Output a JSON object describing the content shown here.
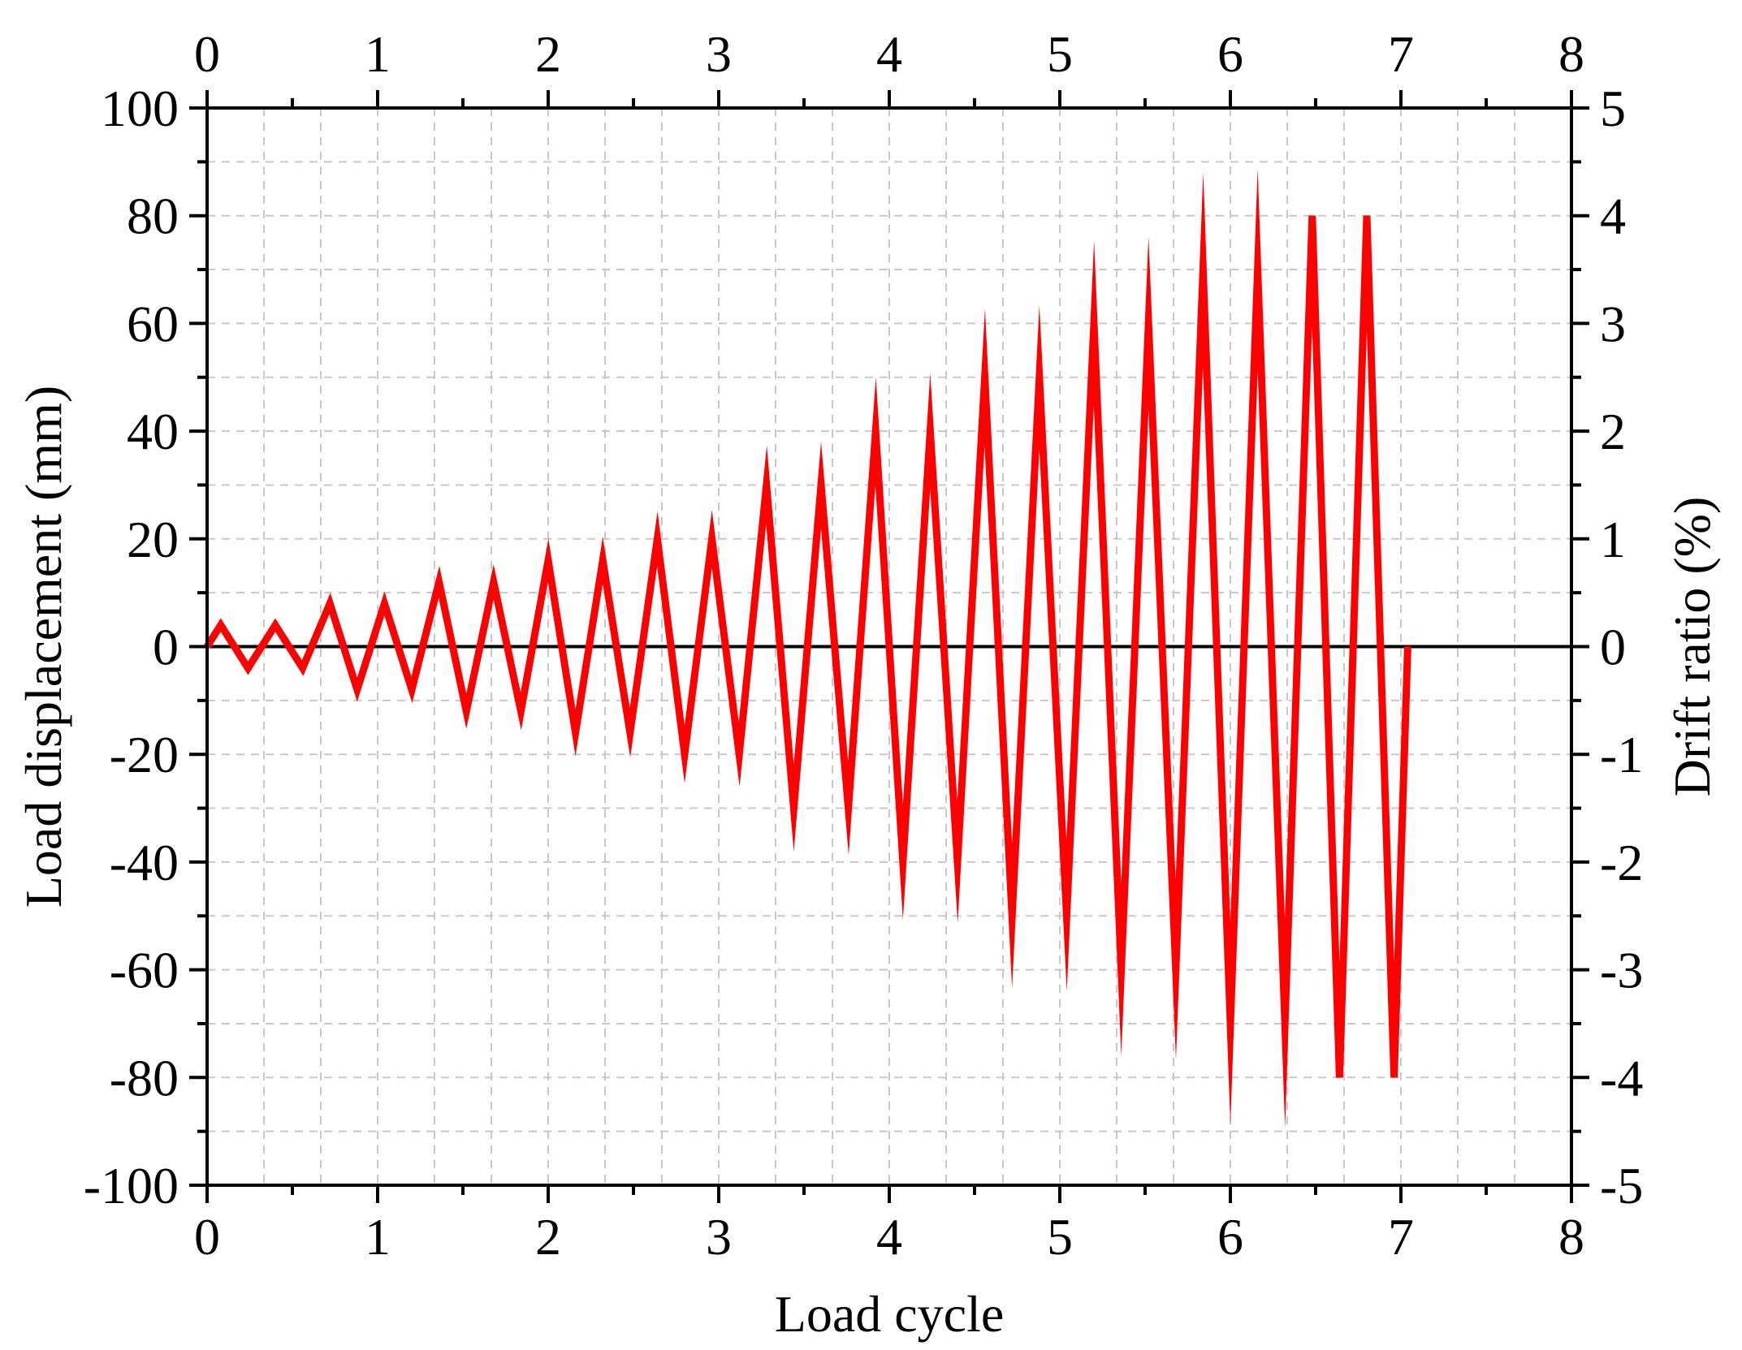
{
  "chart_data": {
    "type": "line",
    "title": "",
    "xlabel": "Load cycle",
    "ylabel": "Load displacement (mm)",
    "y2label": "Drift ratio (%)",
    "xlim": [
      0,
      8
    ],
    "ylim": [
      -100,
      100
    ],
    "y2lim": [
      -5,
      5
    ],
    "x_ticks": [
      "0",
      "1",
      "2",
      "3",
      "4",
      "5",
      "6",
      "7",
      "8"
    ],
    "y_ticks": [
      "100",
      "80",
      "60",
      "40",
      "20",
      "0",
      "-20",
      "-40",
      "-60",
      "-80",
      "-100"
    ],
    "y2_ticks": [
      "5",
      "4",
      "3",
      "2",
      "1",
      "0",
      "-1",
      "-2",
      "-3",
      "-4",
      "-5"
    ],
    "grid": true,
    "colors": {
      "series": "#ff0000",
      "axis": "#000000",
      "grid": "#c8c8c8",
      "zero_line": "#000000"
    },
    "series": [
      {
        "x": [
          0,
          0.08,
          0.24,
          0.4,
          0.56,
          0.72,
          0.88,
          1.04,
          1.2,
          1.36,
          1.52,
          1.68,
          1.84,
          2.0,
          2.16,
          2.32,
          2.48,
          2.64,
          2.8,
          2.96,
          3.12,
          3.28,
          3.44,
          3.6,
          3.76,
          3.92,
          4.08,
          4.24,
          4.4,
          4.56,
          4.72,
          4.88,
          5.04,
          5.2,
          5.36,
          5.52,
          5.68,
          5.84,
          6.0,
          6.16,
          6.32,
          6.48,
          6.64,
          6.8,
          6.96,
          7.04
        ],
        "values": [
          0,
          4,
          -4,
          4,
          -4,
          8,
          -8,
          8,
          -8,
          12,
          -12,
          12,
          -12,
          16,
          -16,
          16,
          -16,
          20,
          -20,
          20,
          -20,
          30,
          -30,
          30,
          -30,
          40,
          -40,
          40,
          -40,
          50,
          -50,
          50,
          -50,
          60,
          -60,
          60,
          -60,
          70,
          -70,
          70,
          -70,
          80,
          -80,
          80,
          -80,
          0
        ]
      }
    ]
  }
}
